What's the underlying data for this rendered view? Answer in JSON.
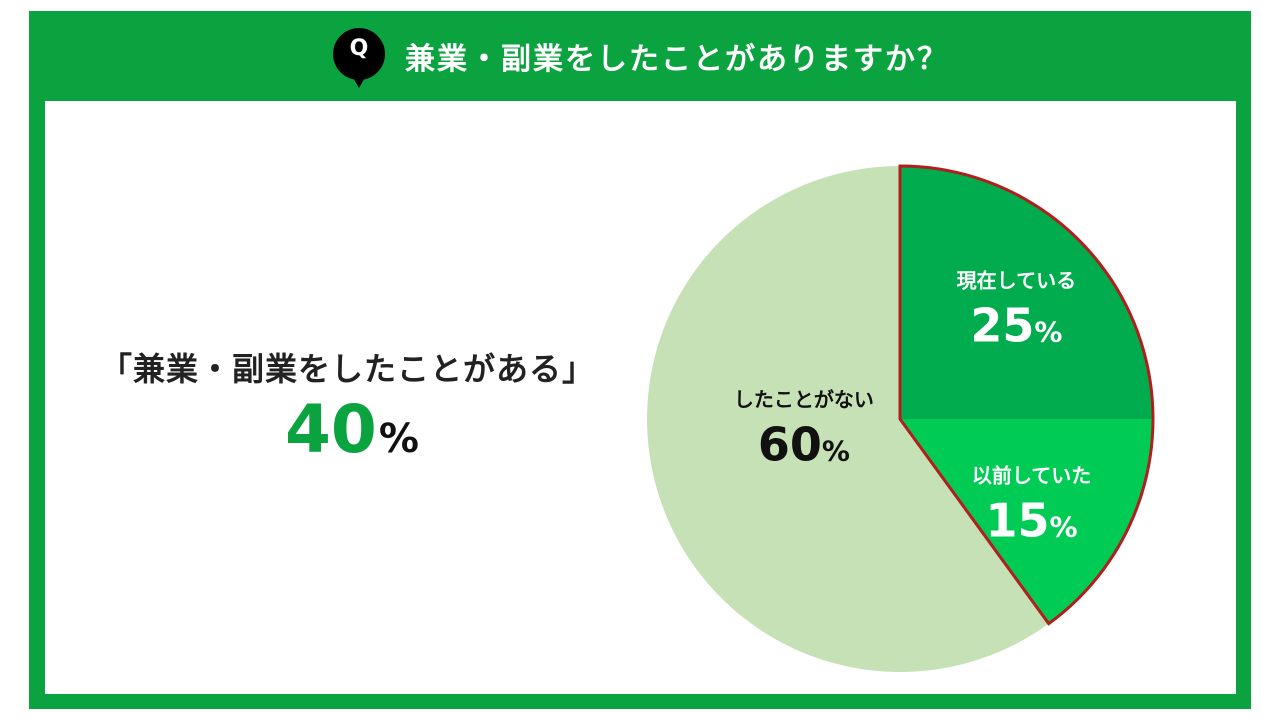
{
  "header": {
    "q_badge": "Q",
    "question": "兼業・副業をしたことがありますか？"
  },
  "summary": {
    "label": "「兼業・副業をしたことがある」",
    "value": "40",
    "unit": "%"
  },
  "colors": {
    "frame": "#0aa33f",
    "current": "#00ac4e",
    "previous": "#00cc55",
    "never": "#c7e1b6",
    "highlight_border": "#b01e1e"
  },
  "chart_data": {
    "type": "pie",
    "unit": "%",
    "slices": [
      {
        "label": "現在している",
        "value": 25,
        "value_label": "25",
        "color": "#00ac4e"
      },
      {
        "label": "以前していた",
        "value": 15,
        "value_label": "15",
        "color": "#00cc55"
      },
      {
        "label": "したことがない",
        "value": 60,
        "value_label": "60",
        "color": "#c7e1b6"
      }
    ],
    "highlighted_slices": [
      "現在している",
      "以前していた"
    ],
    "start_angle_deg": 0,
    "direction": "clockwise"
  }
}
